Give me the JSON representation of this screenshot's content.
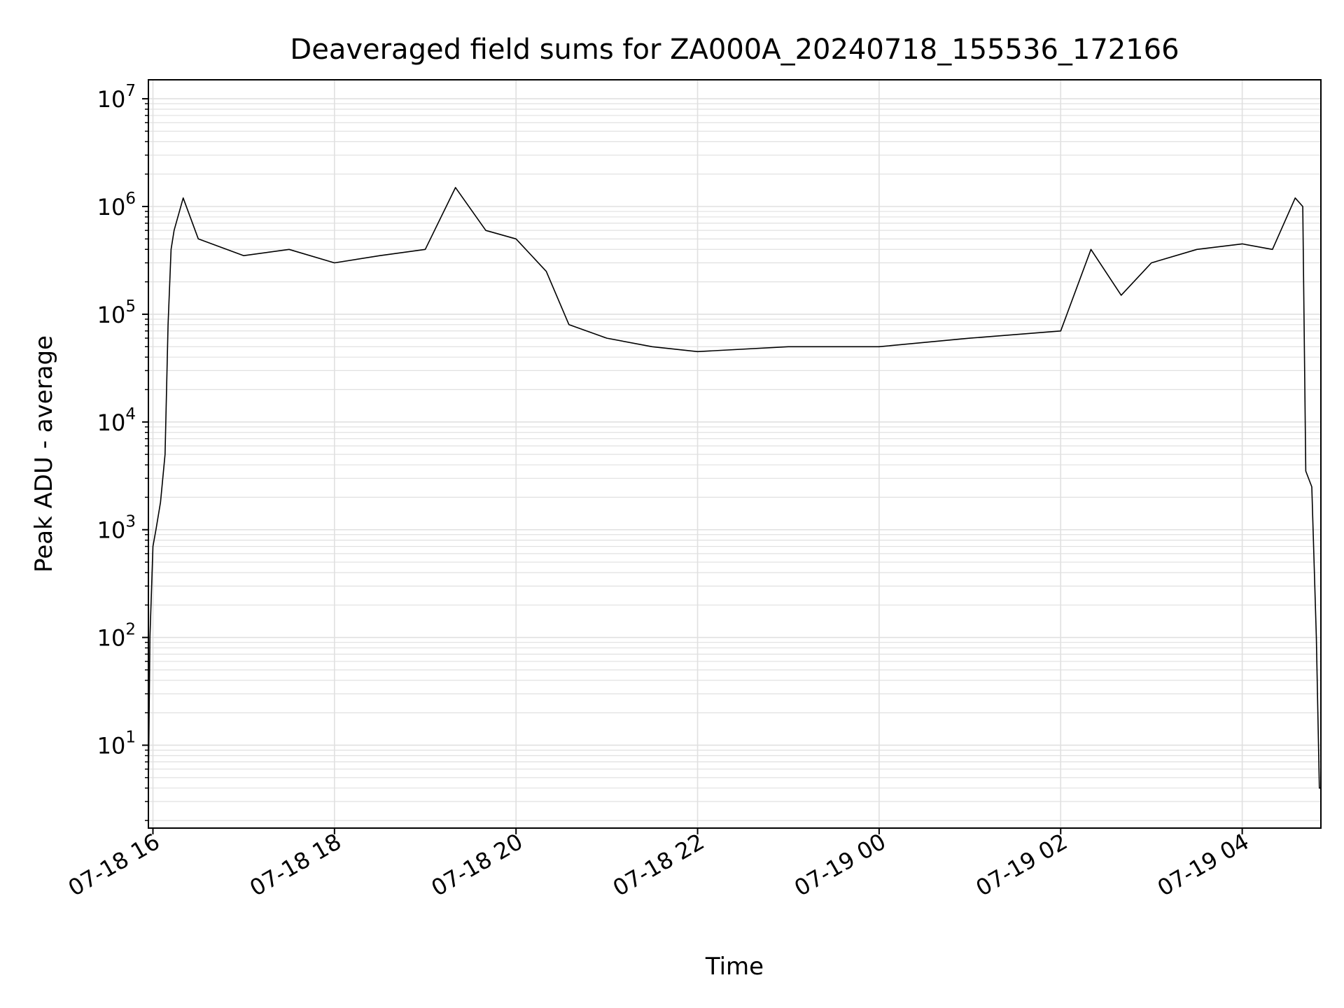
{
  "chart_data": {
    "type": "line",
    "title": "Deaveraged field sums for ZA000A_20240718_155536_172166",
    "xlabel": "Time",
    "ylabel": "Peak ADU - average",
    "yscale": "log",
    "ylim": [
      1.7,
      15000000
    ],
    "xlim": [
      "2024-07-18 15:57",
      "2024-07-19 04:52"
    ],
    "x_tick_labels": [
      "07-18 16",
      "07-18 18",
      "07-18 20",
      "07-18 22",
      "07-19 00",
      "07-19 02",
      "07-19 04"
    ],
    "x_ticks": [
      "2024-07-18 16:00",
      "2024-07-18 18:00",
      "2024-07-18 20:00",
      "2024-07-18 22:00",
      "2024-07-19 00:00",
      "2024-07-19 02:00",
      "2024-07-19 04:00"
    ],
    "y_ticks": [
      {
        "base": "10",
        "exp": "1",
        "value": 10
      },
      {
        "base": "10",
        "exp": "2",
        "value": 100
      },
      {
        "base": "10",
        "exp": "3",
        "value": 1000
      },
      {
        "base": "10",
        "exp": "4",
        "value": 10000
      },
      {
        "base": "10",
        "exp": "5",
        "value": 100000
      },
      {
        "base": "10",
        "exp": "6",
        "value": 1000000
      },
      {
        "base": "10",
        "exp": "7",
        "value": 10000000
      }
    ],
    "grid": true,
    "line_color": "#000000",
    "grid_color": "#e0e0e0",
    "series": [
      {
        "x": [
          "2024-07-18 15:57",
          "2024-07-18 15:58",
          "2024-07-18 16:00",
          "2024-07-18 16:02",
          "2024-07-18 16:05",
          "2024-07-18 16:08",
          "2024-07-18 16:10",
          "2024-07-18 16:12",
          "2024-07-18 16:14",
          "2024-07-18 16:20",
          "2024-07-18 16:30",
          "2024-07-18 17:00",
          "2024-07-18 17:30",
          "2024-07-18 18:00",
          "2024-07-18 18:30",
          "2024-07-18 19:00",
          "2024-07-18 19:20",
          "2024-07-18 19:40",
          "2024-07-18 20:00",
          "2024-07-18 20:20",
          "2024-07-18 20:35",
          "2024-07-18 21:00",
          "2024-07-18 21:30",
          "2024-07-18 22:00",
          "2024-07-18 23:00",
          "2024-07-19 00:00",
          "2024-07-19 01:00",
          "2024-07-19 02:00",
          "2024-07-19 02:20",
          "2024-07-19 02:40",
          "2024-07-19 03:00",
          "2024-07-19 03:30",
          "2024-07-19 04:00",
          "2024-07-19 04:20",
          "2024-07-19 04:35",
          "2024-07-19 04:40",
          "2024-07-19 04:42",
          "2024-07-19 04:46",
          "2024-07-19 04:49",
          "2024-07-19 04:51",
          "2024-07-19 04:52"
        ],
        "y": [
          4,
          100,
          700,
          1000,
          1800,
          5000,
          80000,
          400000,
          600000,
          1200000,
          500000,
          350000,
          400000,
          300000,
          350000,
          400000,
          1500000,
          600000,
          500000,
          250000,
          80000,
          60000,
          50000,
          45000,
          50000,
          50000,
          60000,
          70000,
          400000,
          150000,
          300000,
          400000,
          450000,
          400000,
          1200000,
          1000000,
          3500,
          2500,
          100,
          4,
          4
        ]
      }
    ]
  }
}
